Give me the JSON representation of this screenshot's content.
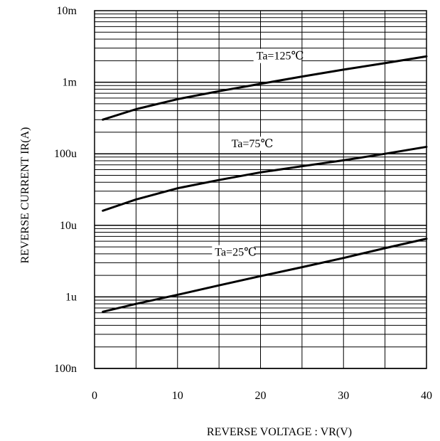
{
  "chart_data": {
    "type": "line",
    "title": "",
    "xlabel": "REVERSE VOLTAGE : VR(V)",
    "ylabel": "REVERSE CURRENT    IR(A)",
    "x_scale": "linear",
    "y_scale": "log",
    "xlim": [
      0,
      40
    ],
    "ylim": [
      1e-07,
      0.01
    ],
    "grid": true,
    "x_ticks": [
      {
        "value": 0,
        "label": "0"
      },
      {
        "value": 10,
        "label": "10"
      },
      {
        "value": 20,
        "label": "20"
      },
      {
        "value": 30,
        "label": "30"
      },
      {
        "value": 40,
        "label": "40"
      }
    ],
    "y_ticks": [
      {
        "value": 1e-07,
        "label": "100n"
      },
      {
        "value": 1e-06,
        "label": "1u"
      },
      {
        "value": 1e-05,
        "label": "10u"
      },
      {
        "value": 0.0001,
        "label": "100u"
      },
      {
        "value": 0.001,
        "label": "1m"
      },
      {
        "value": 0.01,
        "label": "10m"
      }
    ],
    "series": [
      {
        "name": "Ta=125℃",
        "x": [
          1,
          5,
          10,
          15,
          20,
          25,
          30,
          35,
          40
        ],
        "y": [
          0.0003,
          0.00042,
          0.00058,
          0.00075,
          0.00095,
          0.0012,
          0.0015,
          0.00185,
          0.0023
        ]
      },
      {
        "name": "Ta=75℃",
        "x": [
          1,
          5,
          10,
          15,
          20,
          25,
          30,
          35,
          40
        ],
        "y": [
          1.6e-05,
          2.3e-05,
          3.3e-05,
          4.3e-05,
          5.5e-05,
          6.7e-05,
          8.1e-05,
          0.0001,
          0.000125
        ]
      },
      {
        "name": "Ta=25℃",
        "x": [
          1,
          5,
          10,
          15,
          20,
          25,
          30,
          35,
          40
        ],
        "y": [
          6.2e-07,
          8e-07,
          1.07e-06,
          1.45e-06,
          1.95e-06,
          2.6e-06,
          3.5e-06,
          4.8e-06,
          6.5e-06
        ]
      }
    ]
  }
}
